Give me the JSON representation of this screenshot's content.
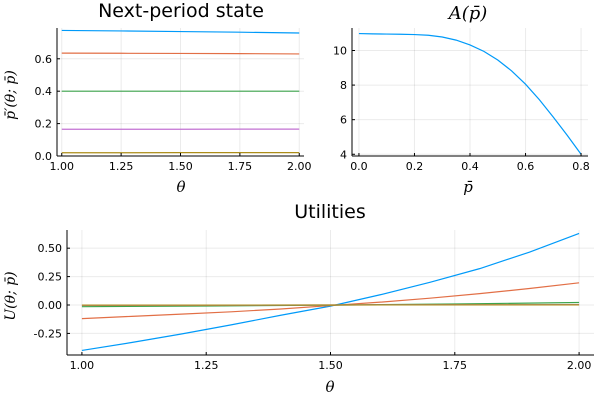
{
  "chart_data": [
    {
      "id": "next_state",
      "type": "line",
      "title": "Next-period state",
      "xlabel": "θ",
      "ylabel": "p̄′(θ; p̄)",
      "xlim": [
        0.98,
        2.02
      ],
      "ylim": [
        0.0,
        0.79
      ],
      "xticks": [
        1.0,
        1.25,
        1.5,
        1.75,
        2.0
      ],
      "xtick_labels": [
        "1.00",
        "1.25",
        "1.50",
        "1.75",
        "2.00"
      ],
      "yticks": [
        0.0,
        0.2,
        0.4,
        0.6
      ],
      "ytick_labels": [
        "0.0",
        "0.2",
        "0.4",
        "0.6"
      ],
      "grid": true,
      "series": [
        {
          "color": "#009af9",
          "x": [
            1.0,
            1.25,
            1.5,
            1.75,
            2.0
          ],
          "y": [
            0.775,
            0.772,
            0.768,
            0.764,
            0.759
          ]
        },
        {
          "color": "#e26f46",
          "x": [
            1.0,
            1.25,
            1.5,
            1.75,
            2.0
          ],
          "y": [
            0.635,
            0.634,
            0.633,
            0.632,
            0.63
          ]
        },
        {
          "color": "#3da44d",
          "x": [
            1.0,
            1.25,
            1.5,
            1.75,
            2.0
          ],
          "y": [
            0.4,
            0.4,
            0.4,
            0.4,
            0.4
          ]
        },
        {
          "color": "#c271d2",
          "x": [
            1.0,
            1.25,
            1.5,
            1.75,
            2.0
          ],
          "y": [
            0.165,
            0.165,
            0.165,
            0.166,
            0.166
          ]
        },
        {
          "color": "#ac8d18",
          "x": [
            1.0,
            1.25,
            1.5,
            1.75,
            2.0
          ],
          "y": [
            0.02,
            0.02,
            0.021,
            0.021,
            0.021
          ]
        }
      ]
    },
    {
      "id": "A_pbar",
      "type": "line",
      "title": "A(p̄)",
      "xlabel": "p̄",
      "ylabel": "",
      "xlim": [
        -0.025,
        0.825
      ],
      "ylim": [
        3.9,
        11.3
      ],
      "xticks": [
        0.0,
        0.2,
        0.4,
        0.6,
        0.8
      ],
      "xtick_labels": [
        "0.0",
        "0.2",
        "0.4",
        "0.6",
        "0.8"
      ],
      "yticks": [
        4,
        6,
        8,
        10
      ],
      "ytick_labels": [
        "4",
        "6",
        "8",
        "10"
      ],
      "grid": true,
      "series": [
        {
          "color": "#009af9",
          "x": [
            0.0,
            0.05,
            0.1,
            0.15,
            0.2,
            0.25,
            0.3,
            0.35,
            0.4,
            0.45,
            0.5,
            0.55,
            0.6,
            0.65,
            0.7,
            0.75,
            0.8
          ],
          "y": [
            10.98,
            10.96,
            10.95,
            10.94,
            10.92,
            10.88,
            10.78,
            10.6,
            10.32,
            9.95,
            9.45,
            8.82,
            8.05,
            7.15,
            6.15,
            5.1,
            4.0
          ]
        }
      ]
    },
    {
      "id": "utilities",
      "type": "line",
      "title": "Utilities",
      "xlabel": "θ",
      "ylabel": "U(θ; p̄)",
      "xlim": [
        0.97,
        2.03
      ],
      "ylim": [
        -0.44,
        0.66
      ],
      "xticks": [
        1.0,
        1.25,
        1.5,
        1.75,
        2.0
      ],
      "xtick_labels": [
        "1.00",
        "1.25",
        "1.50",
        "1.75",
        "2.00"
      ],
      "yticks": [
        -0.25,
        0.0,
        0.25,
        0.5
      ],
      "ytick_labels": [
        "-0.25",
        "0.00",
        "0.25",
        "0.50"
      ],
      "grid": true,
      "series": [
        {
          "color": "#009af9",
          "x": [
            1.0,
            1.1,
            1.2,
            1.3,
            1.4,
            1.5,
            1.6,
            1.7,
            1.8,
            1.9,
            2.0
          ],
          "y": [
            -0.4,
            -0.33,
            -0.255,
            -0.175,
            -0.09,
            -0.01,
            0.09,
            0.2,
            0.32,
            0.465,
            0.63
          ]
        },
        {
          "color": "#e26f46",
          "x": [
            1.0,
            1.1,
            1.2,
            1.3,
            1.4,
            1.5,
            1.6,
            1.7,
            1.8,
            1.9,
            2.0
          ],
          "y": [
            -0.12,
            -0.1,
            -0.08,
            -0.06,
            -0.035,
            -0.005,
            0.025,
            0.06,
            0.1,
            0.145,
            0.195
          ]
        },
        {
          "color": "#3da44d",
          "x": [
            1.0,
            1.25,
            1.5,
            1.75,
            2.0
          ],
          "y": [
            -0.015,
            -0.009,
            -0.001,
            0.009,
            0.022
          ]
        },
        {
          "color": "#c271d2",
          "x": [
            1.0,
            1.25,
            1.5,
            1.75,
            2.0
          ],
          "y": [
            -0.004,
            -0.002,
            0.0,
            0.002,
            0.004
          ]
        },
        {
          "color": "#ac8d18",
          "x": [
            1.0,
            1.25,
            1.5,
            1.75,
            2.0
          ],
          "y": [
            -0.001,
            -0.001,
            0.0,
            0.001,
            0.001
          ]
        }
      ]
    }
  ]
}
